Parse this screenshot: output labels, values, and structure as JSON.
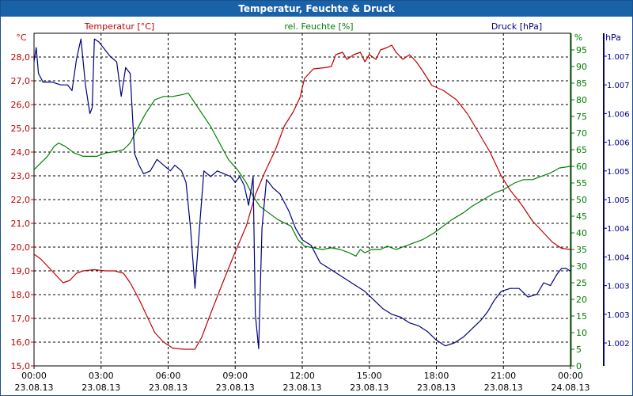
{
  "chart_data": {
    "type": "line",
    "title": "Temperatur, Feuchte & Druck",
    "x_ticks": [
      {
        "time": "00:00",
        "date": "23.08.13"
      },
      {
        "time": "03:00",
        "date": "23.08.13"
      },
      {
        "time": "06:00",
        "date": "23.08.13"
      },
      {
        "time": "09:00",
        "date": "23.08.13"
      },
      {
        "time": "12:00",
        "date": "23.08.13"
      },
      {
        "time": "15:00",
        "date": "23.08.13"
      },
      {
        "time": "18:00",
        "date": "23.08.13"
      },
      {
        "time": "21:00",
        "date": "23.08.13"
      },
      {
        "time": "00:00",
        "date": "24.08.13"
      }
    ],
    "x_range_hours": [
      0,
      24
    ],
    "grid": true,
    "axes": {
      "temperature": {
        "label": "Temperatur [°C]",
        "unit": "°C",
        "color": "#c00000",
        "range": [
          15,
          29
        ],
        "ticks": [
          "15,0",
          "16,0",
          "17,0",
          "18,0",
          "19,0",
          "20,0",
          "21,0",
          "22,0",
          "23,0",
          "24,0",
          "25,0",
          "26,0",
          "27,0",
          "28,0"
        ]
      },
      "humidity": {
        "label": "rel. Feuchte [%]",
        "unit": "%",
        "color": "#008000",
        "range": [
          0,
          100
        ],
        "ticks": [
          "0",
          "5",
          "10",
          "15",
          "20",
          "25",
          "30",
          "35",
          "40",
          "45",
          "50",
          "55",
          "60",
          "65",
          "70",
          "75",
          "80",
          "85",
          "90",
          "95"
        ]
      },
      "pressure": {
        "label": "Druck [hPa]",
        "unit": "hPa",
        "color": "#000080",
        "range": [
          1001.6,
          1007.4
        ],
        "ticks": [
          {
            "v": 1002.0,
            "l": "1.002"
          },
          {
            "v": 1002.5,
            "l": "1.003"
          },
          {
            "v": 1003.0,
            "l": "1.003"
          },
          {
            "v": 1003.5,
            "l": "1.004"
          },
          {
            "v": 1004.0,
            "l": "1.004"
          },
          {
            "v": 1004.5,
            "l": "1.005"
          },
          {
            "v": 1005.0,
            "l": "1.005"
          },
          {
            "v": 1005.5,
            "l": "1.006"
          },
          {
            "v": 1006.0,
            "l": "1.006"
          },
          {
            "v": 1006.5,
            "l": "1.007"
          },
          {
            "v": 1007.0,
            "l": "1.007"
          }
        ]
      }
    },
    "series": [
      {
        "name": "Temperatur [°C]",
        "axis": "temperature",
        "color": "#c00000",
        "points": [
          [
            0,
            19.7
          ],
          [
            0.3,
            19.5
          ],
          [
            0.6,
            19.2
          ],
          [
            1.0,
            18.8
          ],
          [
            1.3,
            18.5
          ],
          [
            1.6,
            18.6
          ],
          [
            1.9,
            18.9
          ],
          [
            2.2,
            19.0
          ],
          [
            2.7,
            19.05
          ],
          [
            3.2,
            19.0
          ],
          [
            3.6,
            19.0
          ],
          [
            4.0,
            18.9
          ],
          [
            4.3,
            18.5
          ],
          [
            4.7,
            17.8
          ],
          [
            5.1,
            17.0
          ],
          [
            5.4,
            16.4
          ],
          [
            5.8,
            16.0
          ],
          [
            6.2,
            15.75
          ],
          [
            6.7,
            15.7
          ],
          [
            7.2,
            15.7
          ],
          [
            7.5,
            16.2
          ],
          [
            7.9,
            17.2
          ],
          [
            8.4,
            18.4
          ],
          [
            9.0,
            19.8
          ],
          [
            9.5,
            20.9
          ],
          [
            9.9,
            22.2
          ],
          [
            10.3,
            23.1
          ],
          [
            10.8,
            24.1
          ],
          [
            11.2,
            25.1
          ],
          [
            11.6,
            25.7
          ],
          [
            11.9,
            26.3
          ],
          [
            12.1,
            27.1
          ],
          [
            12.5,
            27.5
          ],
          [
            13.0,
            27.55
          ],
          [
            13.3,
            27.6
          ],
          [
            13.5,
            28.1
          ],
          [
            13.8,
            28.2
          ],
          [
            14.0,
            27.9
          ],
          [
            14.3,
            28.1
          ],
          [
            14.6,
            28.2
          ],
          [
            14.8,
            27.8
          ],
          [
            15.0,
            28.1
          ],
          [
            15.3,
            27.9
          ],
          [
            15.5,
            28.3
          ],
          [
            15.8,
            28.4
          ],
          [
            16.0,
            28.5
          ],
          [
            16.2,
            28.2
          ],
          [
            16.5,
            27.9
          ],
          [
            16.8,
            28.1
          ],
          [
            17.1,
            27.8
          ],
          [
            17.4,
            27.4
          ],
          [
            17.8,
            26.8
          ],
          [
            18.3,
            26.6
          ],
          [
            18.9,
            26.2
          ],
          [
            19.4,
            25.6
          ],
          [
            19.9,
            24.8
          ],
          [
            20.4,
            24.0
          ],
          [
            20.9,
            23.0
          ],
          [
            21.3,
            22.4
          ],
          [
            21.8,
            21.8
          ],
          [
            22.3,
            21.1
          ],
          [
            22.8,
            20.6
          ],
          [
            23.2,
            20.2
          ],
          [
            23.6,
            19.95
          ],
          [
            24.0,
            19.9
          ]
        ]
      },
      {
        "name": "rel. Feuchte [%]",
        "axis": "humidity",
        "color": "#008000",
        "points": [
          [
            0,
            59
          ],
          [
            0.3,
            61
          ],
          [
            0.6,
            63
          ],
          [
            0.9,
            66
          ],
          [
            1.1,
            67
          ],
          [
            1.4,
            66
          ],
          [
            1.8,
            64
          ],
          [
            2.2,
            63
          ],
          [
            2.8,
            63
          ],
          [
            3.2,
            64
          ],
          [
            3.7,
            64.5
          ],
          [
            4.0,
            65
          ],
          [
            4.3,
            67
          ],
          [
            4.6,
            71
          ],
          [
            5.0,
            76
          ],
          [
            5.4,
            80
          ],
          [
            5.8,
            81
          ],
          [
            6.2,
            81
          ],
          [
            6.6,
            81.5
          ],
          [
            6.9,
            82
          ],
          [
            7.2,
            79
          ],
          [
            7.5,
            76
          ],
          [
            7.9,
            72
          ],
          [
            8.3,
            67
          ],
          [
            8.7,
            62
          ],
          [
            9.1,
            59
          ],
          [
            9.5,
            55
          ],
          [
            9.8,
            51
          ],
          [
            10.1,
            48
          ],
          [
            10.5,
            46
          ],
          [
            10.9,
            44
          ],
          [
            11.2,
            43
          ],
          [
            11.5,
            42
          ],
          [
            11.8,
            38
          ],
          [
            12.1,
            36
          ],
          [
            12.5,
            35.5
          ],
          [
            12.9,
            35
          ],
          [
            13.3,
            35.5
          ],
          [
            13.7,
            35
          ],
          [
            14.1,
            34
          ],
          [
            14.4,
            33
          ],
          [
            14.6,
            35
          ],
          [
            14.8,
            34
          ],
          [
            15.1,
            35
          ],
          [
            15.5,
            35
          ],
          [
            15.8,
            36
          ],
          [
            16.2,
            35
          ],
          [
            16.6,
            36
          ],
          [
            17.0,
            37
          ],
          [
            17.4,
            38
          ],
          [
            17.9,
            40
          ],
          [
            18.3,
            42
          ],
          [
            18.7,
            44
          ],
          [
            19.2,
            46
          ],
          [
            19.6,
            48
          ],
          [
            20.1,
            50
          ],
          [
            20.6,
            52
          ],
          [
            21.0,
            53
          ],
          [
            21.5,
            55
          ],
          [
            21.9,
            56
          ],
          [
            22.3,
            56
          ],
          [
            22.7,
            57
          ],
          [
            23.1,
            58
          ],
          [
            23.5,
            59.5
          ],
          [
            24.0,
            60
          ]
        ]
      },
      {
        "name": "Druck [hPa]",
        "axis": "pressure",
        "color": "#000080",
        "points": [
          [
            0,
            1006.9
          ],
          [
            0.1,
            1007.15
          ],
          [
            0.2,
            1006.7
          ],
          [
            0.4,
            1006.55
          ],
          [
            0.8,
            1006.55
          ],
          [
            1.2,
            1006.5
          ],
          [
            1.5,
            1006.5
          ],
          [
            1.7,
            1006.4
          ],
          [
            1.9,
            1006.95
          ],
          [
            2.1,
            1007.3
          ],
          [
            2.3,
            1006.5
          ],
          [
            2.5,
            1006.0
          ],
          [
            2.6,
            1006.1
          ],
          [
            2.7,
            1007.3
          ],
          [
            2.9,
            1007.25
          ],
          [
            3.2,
            1007.1
          ],
          [
            3.4,
            1007.0
          ],
          [
            3.7,
            1006.9
          ],
          [
            3.9,
            1006.3
          ],
          [
            4.1,
            1006.8
          ],
          [
            4.3,
            1006.7
          ],
          [
            4.5,
            1005.3
          ],
          [
            4.7,
            1005.1
          ],
          [
            4.9,
            1004.95
          ],
          [
            5.2,
            1005.0
          ],
          [
            5.5,
            1005.2
          ],
          [
            5.8,
            1005.1
          ],
          [
            6.1,
            1005.0
          ],
          [
            6.3,
            1005.1
          ],
          [
            6.6,
            1005.0
          ],
          [
            6.8,
            1004.8
          ],
          [
            7.0,
            1004.0
          ],
          [
            7.2,
            1002.95
          ],
          [
            7.4,
            1004.0
          ],
          [
            7.6,
            1005.0
          ],
          [
            7.9,
            1004.9
          ],
          [
            8.2,
            1005.0
          ],
          [
            8.5,
            1004.95
          ],
          [
            8.8,
            1004.9
          ],
          [
            9.0,
            1004.8
          ],
          [
            9.2,
            1004.9
          ],
          [
            9.4,
            1004.75
          ],
          [
            9.6,
            1004.4
          ],
          [
            9.8,
            1004.9
          ],
          [
            9.9,
            1002.5
          ],
          [
            10.05,
            1001.9
          ],
          [
            10.2,
            1004.0
          ],
          [
            10.4,
            1004.85
          ],
          [
            10.7,
            1004.7
          ],
          [
            11.0,
            1004.6
          ],
          [
            11.4,
            1004.3
          ],
          [
            11.7,
            1004.0
          ],
          [
            12.0,
            1003.8
          ],
          [
            12.4,
            1003.7
          ],
          [
            12.8,
            1003.4
          ],
          [
            13.2,
            1003.3
          ],
          [
            13.6,
            1003.2
          ],
          [
            14.0,
            1003.1
          ],
          [
            14.4,
            1003.0
          ],
          [
            14.8,
            1002.9
          ],
          [
            15.2,
            1002.75
          ],
          [
            15.6,
            1002.6
          ],
          [
            16.0,
            1002.5
          ],
          [
            16.4,
            1002.45
          ],
          [
            16.8,
            1002.35
          ],
          [
            17.2,
            1002.3
          ],
          [
            17.6,
            1002.2
          ],
          [
            18.0,
            1002.05
          ],
          [
            18.4,
            1001.95
          ],
          [
            18.8,
            1002.0
          ],
          [
            19.2,
            1002.1
          ],
          [
            19.6,
            1002.25
          ],
          [
            20.0,
            1002.4
          ],
          [
            20.3,
            1002.55
          ],
          [
            20.6,
            1002.75
          ],
          [
            20.9,
            1002.9
          ],
          [
            21.3,
            1002.95
          ],
          [
            21.7,
            1002.95
          ],
          [
            22.1,
            1002.8
          ],
          [
            22.5,
            1002.85
          ],
          [
            22.8,
            1003.05
          ],
          [
            23.1,
            1003.0
          ],
          [
            23.4,
            1003.2
          ],
          [
            23.6,
            1003.3
          ],
          [
            23.8,
            1003.3
          ],
          [
            24.0,
            1003.25
          ]
        ]
      }
    ]
  }
}
